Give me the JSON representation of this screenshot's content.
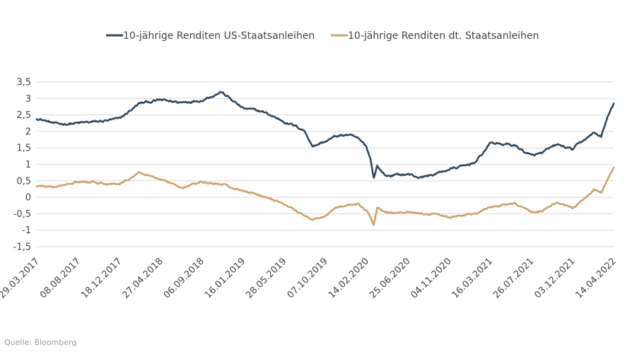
{
  "chart_data": {
    "type": "line",
    "title": "",
    "xlabel": "",
    "ylabel": "",
    "ylim": [
      -1.5,
      3.5
    ],
    "yticks": [
      "3,5",
      "3",
      "2,5",
      "2",
      "1,5",
      "1",
      "0,5",
      "0",
      "-0,5",
      "-1",
      "-1,5"
    ],
    "ytick_values": [
      3.5,
      3,
      2.5,
      2,
      1.5,
      1,
      0.5,
      0,
      -0.5,
      -1,
      -1.5
    ],
    "xticks": [
      "29.03.2017",
      "08.08.2017",
      "18.12.2017",
      "27.04.2018",
      "06.09.2018",
      "16.01.2019",
      "28.05.2019",
      "07.10.2019",
      "14.02.2020",
      "25.06.2020",
      "04.11.2020",
      "16.03.2021",
      "26.07.2021",
      "03.12.2021",
      "14.04.2022"
    ],
    "grid": "horizontal",
    "legend_position": "top",
    "x_dates": [
      "2017-03-29",
      "2017-06-01",
      "2017-08-08",
      "2017-10-15",
      "2017-12-18",
      "2018-02-20",
      "2018-04-27",
      "2018-07-01",
      "2018-09-06",
      "2018-11-08",
      "2019-01-16",
      "2019-03-20",
      "2019-05-28",
      "2019-07-29",
      "2019-08-28",
      "2019-10-07",
      "2019-11-10",
      "2019-12-15",
      "2020-01-15",
      "2020-02-14",
      "2020-02-28",
      "2020-03-09",
      "2020-03-20",
      "2020-04-15",
      "2020-05-20",
      "2020-06-25",
      "2020-08-05",
      "2020-09-20",
      "2020-11-04",
      "2020-12-25",
      "2021-02-01",
      "2021-03-16",
      "2021-04-20",
      "2021-06-01",
      "2021-07-26",
      "2021-08-30",
      "2021-10-15",
      "2021-12-03",
      "2022-01-10",
      "2022-02-10",
      "2022-03-05",
      "2022-03-25",
      "2022-04-14"
    ],
    "series": [
      {
        "name": "10-jährige Renditen US-Staatsanleihen",
        "color": "#33495f",
        "values": [
          2.4,
          2.22,
          2.25,
          2.3,
          2.38,
          2.85,
          2.95,
          2.88,
          2.95,
          3.2,
          2.7,
          2.6,
          2.3,
          2.05,
          1.55,
          1.7,
          1.85,
          1.9,
          1.8,
          1.55,
          1.15,
          0.6,
          0.95,
          0.65,
          0.68,
          0.7,
          0.6,
          0.7,
          0.85,
          0.95,
          1.1,
          1.65,
          1.62,
          1.58,
          1.25,
          1.35,
          1.6,
          1.45,
          1.75,
          1.95,
          1.85,
          2.4,
          2.85
        ]
      },
      {
        "name": "10-jährige Renditen dt. Staatsanleihen",
        "color": "#c8a46e",
        "values": [
          0.35,
          0.3,
          0.5,
          0.45,
          0.4,
          0.75,
          0.55,
          0.3,
          0.45,
          0.4,
          0.2,
          0.05,
          -0.2,
          -0.55,
          -0.7,
          -0.55,
          -0.3,
          -0.25,
          -0.2,
          -0.4,
          -0.62,
          -0.85,
          -0.35,
          -0.45,
          -0.5,
          -0.45,
          -0.5,
          -0.52,
          -0.6,
          -0.55,
          -0.5,
          -0.3,
          -0.25,
          -0.2,
          -0.45,
          -0.4,
          -0.15,
          -0.35,
          -0.05,
          0.25,
          0.15,
          0.55,
          0.9
        ]
      }
    ]
  },
  "source_text": "Quelle: Bloomberg"
}
